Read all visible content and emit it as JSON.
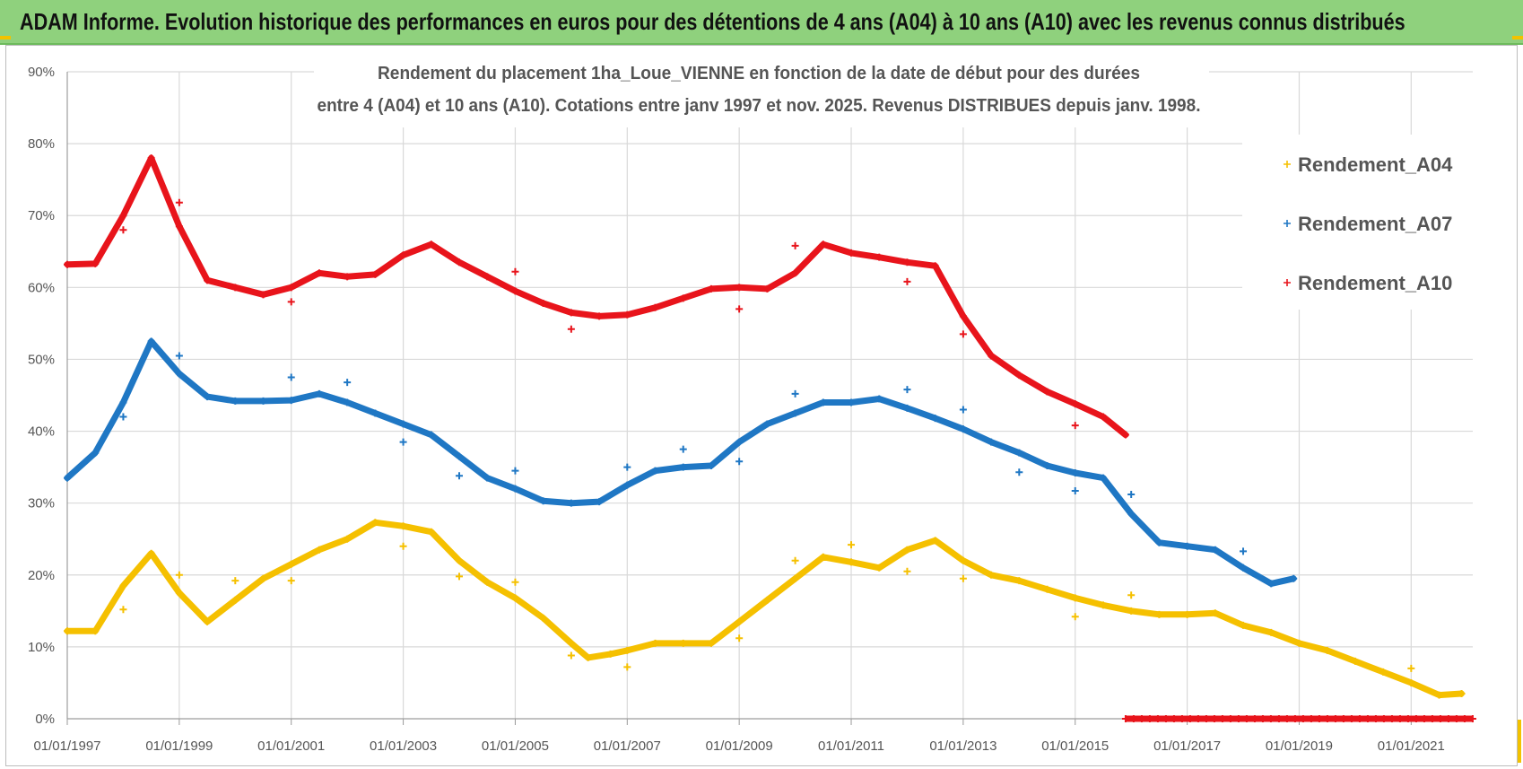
{
  "header": {
    "banner": "ADAM Informe. Evolution historique des performances en euros pour des détentions de 4 ans (A04) à 10 ans (A10) avec les revenus connus distribués"
  },
  "chart_data": {
    "type": "scatter",
    "title_lines": [
      "Rendement du placement 1ha_Loue_VIENNE en fonction de la date de début pour des durées",
      "entre 4 (A04) et 10 ans (A10).  Cotations entre janv 1997 et nov. 2025. Revenus DISTRIBUES depuis janv. 1998."
    ],
    "xlabel": "",
    "ylabel": "",
    "x_range": [
      1997.0,
      2022.1
    ],
    "ylim": [
      0,
      90
    ],
    "y_ticks": [
      "0%",
      "10%",
      "20%",
      "30%",
      "40%",
      "50%",
      "60%",
      "70%",
      "80%",
      "90%"
    ],
    "x_ticks": [
      {
        "year": 1997,
        "label": "01/01/1997"
      },
      {
        "year": 1999,
        "label": "01/01/1999"
      },
      {
        "year": 2001,
        "label": "01/01/2001"
      },
      {
        "year": 2003,
        "label": "01/01/2003"
      },
      {
        "year": 2005,
        "label": "01/01/2005"
      },
      {
        "year": 2007,
        "label": "01/01/2007"
      },
      {
        "year": 2009,
        "label": "01/01/2009"
      },
      {
        "year": 2011,
        "label": "01/01/2011"
      },
      {
        "year": 2013,
        "label": "01/01/2013"
      },
      {
        "year": 2015,
        "label": "01/01/2015"
      },
      {
        "year": 2017,
        "label": "01/01/2017"
      },
      {
        "year": 2019,
        "label": "01/01/2019"
      },
      {
        "year": 2021,
        "label": "01/01/2021"
      }
    ],
    "grid": true,
    "legend_position": "top-right",
    "series": [
      {
        "name": "Rendement_A04",
        "color": "#f5c000",
        "points": [
          [
            1997.0,
            12.2
          ],
          [
            1997.5,
            12.2
          ],
          [
            1998.0,
            18.5
          ],
          [
            1998.5,
            23
          ],
          [
            1999.0,
            17.5
          ],
          [
            1999.5,
            13.5
          ],
          [
            2000.0,
            16.5
          ],
          [
            2000.5,
            19.5
          ],
          [
            2001.0,
            21.5
          ],
          [
            2001.5,
            23.5
          ],
          [
            2002.0,
            25
          ],
          [
            2002.5,
            27.3
          ],
          [
            2003.0,
            26.8
          ],
          [
            2003.5,
            26
          ],
          [
            2004.0,
            22
          ],
          [
            2004.5,
            19
          ],
          [
            2005.0,
            16.8
          ],
          [
            2005.5,
            14
          ],
          [
            2006.0,
            10.5
          ],
          [
            2006.3,
            8.5
          ],
          [
            2006.7,
            9
          ],
          [
            2007.0,
            9.5
          ],
          [
            2007.5,
            10.5
          ],
          [
            2008.0,
            10.5
          ],
          [
            2008.5,
            10.5
          ],
          [
            2009.0,
            13.5
          ],
          [
            2009.5,
            16.5
          ],
          [
            2010.0,
            19.5
          ],
          [
            2010.5,
            22.5
          ],
          [
            2011.0,
            21.8
          ],
          [
            2011.5,
            21
          ],
          [
            2012.0,
            23.5
          ],
          [
            2012.5,
            24.8
          ],
          [
            2013.0,
            22
          ],
          [
            2013.5,
            20
          ],
          [
            2014.0,
            19.2
          ],
          [
            2014.5,
            18
          ],
          [
            2015.0,
            16.8
          ],
          [
            2015.5,
            15.8
          ],
          [
            2016.0,
            15
          ],
          [
            2016.5,
            14.5
          ],
          [
            2017.0,
            14.5
          ],
          [
            2017.5,
            14.7
          ],
          [
            2018.0,
            13
          ],
          [
            2018.5,
            12
          ],
          [
            2019.0,
            10.5
          ],
          [
            2019.5,
            9.5
          ],
          [
            2020.0,
            8
          ],
          [
            2020.5,
            6.5
          ],
          [
            2021.0,
            5
          ],
          [
            2021.5,
            3.3
          ],
          [
            2021.9,
            3.5
          ]
        ],
        "outliers": [
          [
            1998.0,
            15.2
          ],
          [
            1999.0,
            20
          ],
          [
            2000.0,
            19.2
          ],
          [
            2001.0,
            19.2
          ],
          [
            2003.0,
            24
          ],
          [
            2004.0,
            19.8
          ],
          [
            2005.0,
            19
          ],
          [
            2006.0,
            8.8
          ],
          [
            2007.0,
            7.2
          ],
          [
            2009.0,
            11.2
          ],
          [
            2010.0,
            22
          ],
          [
            2011.0,
            24.2
          ],
          [
            2012.0,
            20.5
          ],
          [
            2013.0,
            19.5
          ],
          [
            2015.0,
            14.2
          ],
          [
            2016.0,
            17.2
          ],
          [
            2021.0,
            7
          ]
        ]
      },
      {
        "name": "Rendement_A07",
        "color": "#1f77c4",
        "points": [
          [
            1997.0,
            33.5
          ],
          [
            1997.5,
            37
          ],
          [
            1998.0,
            44
          ],
          [
            1998.5,
            52.5
          ],
          [
            1999.0,
            48
          ],
          [
            1999.5,
            44.8
          ],
          [
            2000.0,
            44.2
          ],
          [
            2000.5,
            44.2
          ],
          [
            2001.0,
            44.3
          ],
          [
            2001.5,
            45.2
          ],
          [
            2002.0,
            44
          ],
          [
            2002.5,
            42.5
          ],
          [
            2003.0,
            41
          ],
          [
            2003.5,
            39.5
          ],
          [
            2004.0,
            36.5
          ],
          [
            2004.5,
            33.5
          ],
          [
            2005.0,
            32
          ],
          [
            2005.5,
            30.3
          ],
          [
            2006.0,
            30
          ],
          [
            2006.5,
            30.2
          ],
          [
            2007.0,
            32.5
          ],
          [
            2007.5,
            34.5
          ],
          [
            2008.0,
            35
          ],
          [
            2008.5,
            35.2
          ],
          [
            2009.0,
            38.5
          ],
          [
            2009.5,
            41
          ],
          [
            2010.0,
            42.5
          ],
          [
            2010.5,
            44
          ],
          [
            2011.0,
            44
          ],
          [
            2011.5,
            44.5
          ],
          [
            2012.0,
            43.2
          ],
          [
            2012.5,
            41.8
          ],
          [
            2013.0,
            40.3
          ],
          [
            2013.5,
            38.5
          ],
          [
            2014.0,
            37
          ],
          [
            2014.5,
            35.2
          ],
          [
            2015.0,
            34.2
          ],
          [
            2015.5,
            33.5
          ],
          [
            2016.0,
            28.5
          ],
          [
            2016.5,
            24.5
          ],
          [
            2017.0,
            24
          ],
          [
            2017.5,
            23.5
          ],
          [
            2018.0,
            21
          ],
          [
            2018.5,
            18.8
          ],
          [
            2018.9,
            19.5
          ]
        ],
        "outliers": [
          [
            1998.0,
            42
          ],
          [
            1999.0,
            50.5
          ],
          [
            2001.0,
            47.5
          ],
          [
            2002.0,
            46.8
          ],
          [
            2003.0,
            38.5
          ],
          [
            2004.0,
            33.8
          ],
          [
            2005.0,
            34.5
          ],
          [
            2007.0,
            35
          ],
          [
            2008.0,
            37.5
          ],
          [
            2009.0,
            35.8
          ],
          [
            2010.0,
            45.2
          ],
          [
            2012.0,
            45.8
          ],
          [
            2013.0,
            43
          ],
          [
            2014.0,
            34.3
          ],
          [
            2015.0,
            31.7
          ],
          [
            2016.0,
            31.2
          ],
          [
            2018.0,
            23.3
          ]
        ]
      },
      {
        "name": "Rendement_A10",
        "color": "#e8141b",
        "points": [
          [
            1997.0,
            63.2
          ],
          [
            1997.5,
            63.3
          ],
          [
            1998.0,
            70
          ],
          [
            1998.5,
            78
          ],
          [
            1999.0,
            68.5
          ],
          [
            1999.5,
            61
          ],
          [
            2000.0,
            60
          ],
          [
            2000.5,
            59
          ],
          [
            2001.0,
            60
          ],
          [
            2001.5,
            62
          ],
          [
            2002.0,
            61.5
          ],
          [
            2002.5,
            61.8
          ],
          [
            2003.0,
            64.5
          ],
          [
            2003.5,
            66
          ],
          [
            2004.0,
            63.5
          ],
          [
            2004.5,
            61.5
          ],
          [
            2005.0,
            59.5
          ],
          [
            2005.5,
            57.8
          ],
          [
            2006.0,
            56.5
          ],
          [
            2006.5,
            56
          ],
          [
            2007.0,
            56.2
          ],
          [
            2007.5,
            57.2
          ],
          [
            2008.0,
            58.5
          ],
          [
            2008.5,
            59.8
          ],
          [
            2009.0,
            60
          ],
          [
            2009.5,
            59.8
          ],
          [
            2010.0,
            62
          ],
          [
            2010.5,
            66
          ],
          [
            2011.0,
            64.8
          ],
          [
            2011.5,
            64.2
          ],
          [
            2012.0,
            63.5
          ],
          [
            2012.5,
            63
          ],
          [
            2013.0,
            56
          ],
          [
            2013.5,
            50.5
          ],
          [
            2014.0,
            47.8
          ],
          [
            2014.5,
            45.5
          ],
          [
            2015.0,
            43.8
          ],
          [
            2015.5,
            42
          ],
          [
            2015.9,
            39.5
          ]
        ],
        "outliers": [
          [
            1998.0,
            68
          ],
          [
            1999.0,
            71.8
          ],
          [
            2001.0,
            58
          ],
          [
            2005.0,
            62.2
          ],
          [
            2006.0,
            54.2
          ],
          [
            2009.0,
            57
          ],
          [
            2010.0,
            65.8
          ],
          [
            2012.0,
            60.8
          ],
          [
            2013.0,
            53.5
          ],
          [
            2015.0,
            40.8
          ]
        ],
        "zero_segment": [
          2015.9,
          2022.1
        ]
      }
    ]
  }
}
